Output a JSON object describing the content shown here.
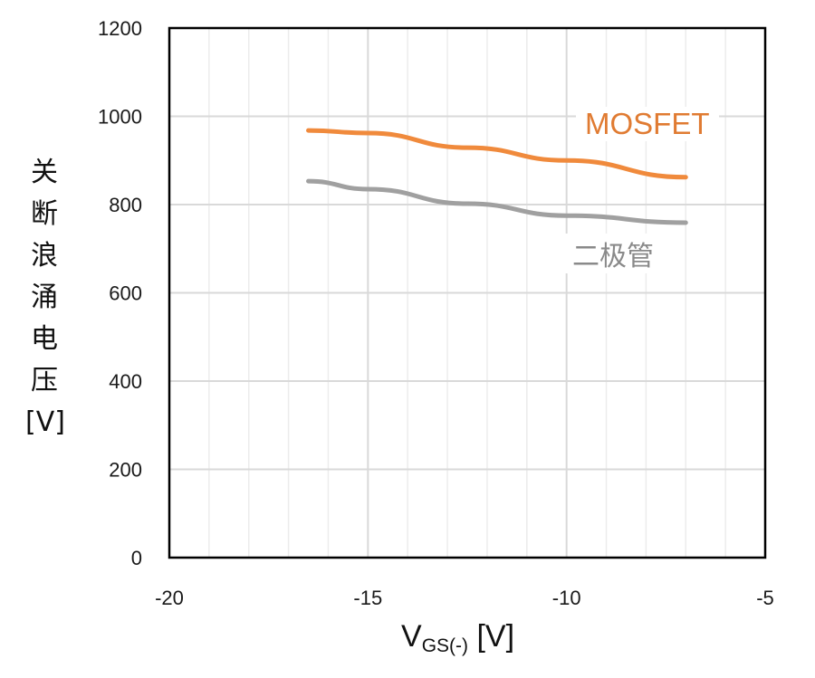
{
  "chart_data": {
    "type": "line",
    "title": "",
    "xlabel": "V_GS(-) [V]",
    "xlabel_main": "V",
    "xlabel_sub": "GS(-)",
    "xlabel_unit": "[V]",
    "ylabel": "关断浪涌电压 [V]",
    "ylabel_chars": [
      "关",
      "断",
      "浪",
      "涌",
      "电",
      "压",
      "[V]"
    ],
    "xlim": [
      -20,
      -5
    ],
    "ylim": [
      0,
      1200
    ],
    "x_ticks": [
      "-20",
      "-15",
      "-10",
      "-5"
    ],
    "y_ticks": [
      "0",
      "200",
      "400",
      "600",
      "800",
      "1000",
      "1200"
    ],
    "grid": {
      "x_major_step": 5,
      "x_minor_step": 1,
      "y_step": 200
    },
    "legend_position": "inline-right",
    "series": [
      {
        "name": "MOSFET",
        "color": "#f08a3c",
        "x": [
          -16.5,
          -15,
          -12.5,
          -10,
          -7
        ],
        "y": [
          968,
          962,
          929,
          900,
          862
        ]
      },
      {
        "name": "二极管",
        "color": "#a0a0a0",
        "x": [
          -16.5,
          -15,
          -12.5,
          -10,
          -7
        ],
        "y": [
          853,
          835,
          802,
          775,
          759
        ]
      }
    ]
  },
  "colors": {
    "mosfet": "#f08a3c",
    "mosfet_label": "#e07b32",
    "diode": "#a0a0a0",
    "diode_label": "#8a8a8a",
    "grid_major": "#d9d9d9",
    "grid_minor": "#ececec",
    "frame": "#000000"
  },
  "labels": {
    "mosfet": "MOSFET",
    "diode": "二极管"
  }
}
